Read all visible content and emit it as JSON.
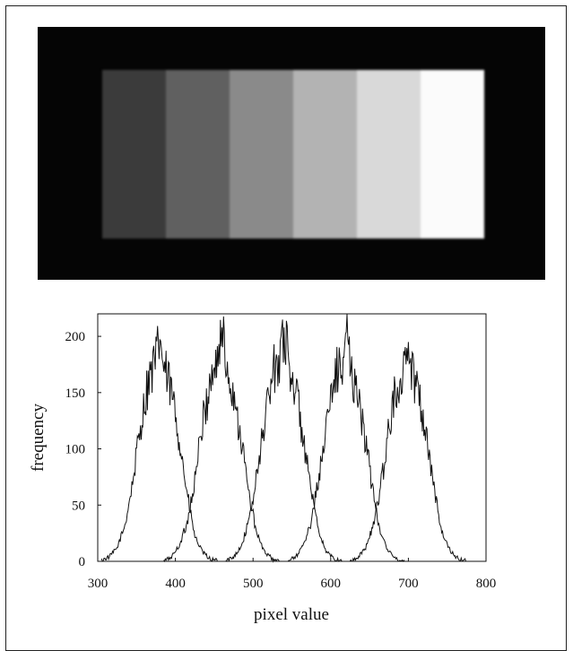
{
  "photo": {
    "step_colors": [
      "#3b3b3b",
      "#606060",
      "#8a8a8a",
      "#b3b3b3",
      "#d9d9d9",
      "#fbfbfb"
    ]
  },
  "chart_data": {
    "type": "line",
    "xlabel": "pixel value",
    "ylabel": "frequency",
    "xlim": [
      300,
      800
    ],
    "ylim": [
      0,
      220
    ],
    "xticks": [
      300,
      400,
      500,
      600,
      700,
      800
    ],
    "yticks": [
      0,
      50,
      100,
      150,
      200
    ],
    "grid": false,
    "line_color": "#111111",
    "series": [
      {
        "mean": 380,
        "peak": 197,
        "x": [
          305,
          315,
          325,
          335,
          345,
          355,
          365,
          375,
          380,
          385,
          395,
          405,
          415,
          425,
          435,
          445,
          455
        ],
        "values": [
          1,
          4,
          12,
          32,
          70,
          120,
          160,
          178,
          197,
          172,
          150,
          110,
          60,
          22,
          8,
          2,
          0
        ]
      },
      {
        "mean": 460,
        "peak": 208,
        "x": [
          385,
          395,
          405,
          415,
          425,
          435,
          445,
          455,
          460,
          465,
          475,
          485,
          495,
          505,
          515,
          525,
          535
        ],
        "values": [
          0,
          4,
          14,
          34,
          72,
          122,
          160,
          182,
          208,
          176,
          150,
          108,
          58,
          24,
          8,
          2,
          0
        ]
      },
      {
        "mean": 540,
        "peak": 208,
        "x": [
          465,
          475,
          485,
          495,
          505,
          515,
          525,
          535,
          540,
          545,
          555,
          565,
          575,
          585,
          595,
          605,
          615
        ],
        "values": [
          0,
          4,
          14,
          36,
          76,
          126,
          166,
          186,
          208,
          180,
          152,
          108,
          60,
          24,
          8,
          2,
          0
        ]
      },
      {
        "mean": 620,
        "peak": 204,
        "x": [
          545,
          555,
          565,
          575,
          585,
          595,
          605,
          615,
          620,
          625,
          635,
          645,
          655,
          665,
          675,
          685,
          695
        ],
        "values": [
          0,
          4,
          14,
          36,
          76,
          124,
          162,
          180,
          204,
          176,
          150,
          106,
          58,
          24,
          8,
          2,
          0
        ]
      },
      {
        "mean": 700,
        "peak": 195,
        "x": [
          625,
          635,
          645,
          655,
          665,
          675,
          685,
          695,
          700,
          705,
          715,
          725,
          735,
          745,
          755,
          765,
          775
        ],
        "values": [
          0,
          4,
          12,
          32,
          70,
          118,
          156,
          174,
          195,
          170,
          146,
          104,
          56,
          22,
          8,
          2,
          0
        ]
      }
    ]
  }
}
